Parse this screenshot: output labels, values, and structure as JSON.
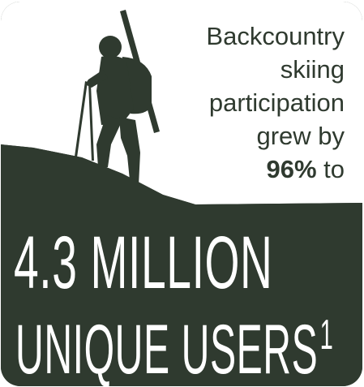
{
  "headline": {
    "line1": "Backcountry",
    "line2": "skiing",
    "line3": "participation",
    "line4": "grew by",
    "percent": "96%",
    "to": "to"
  },
  "stat": {
    "line1": "4.3 MILLION",
    "line2": "UNIQUE USERS",
    "footnote_mark": "1"
  },
  "colors": {
    "dark_green": "#2f3a2f",
    "white": "#ffffff"
  },
  "illustration": {
    "icon": "backcountry-skier-silhouette-icon"
  }
}
